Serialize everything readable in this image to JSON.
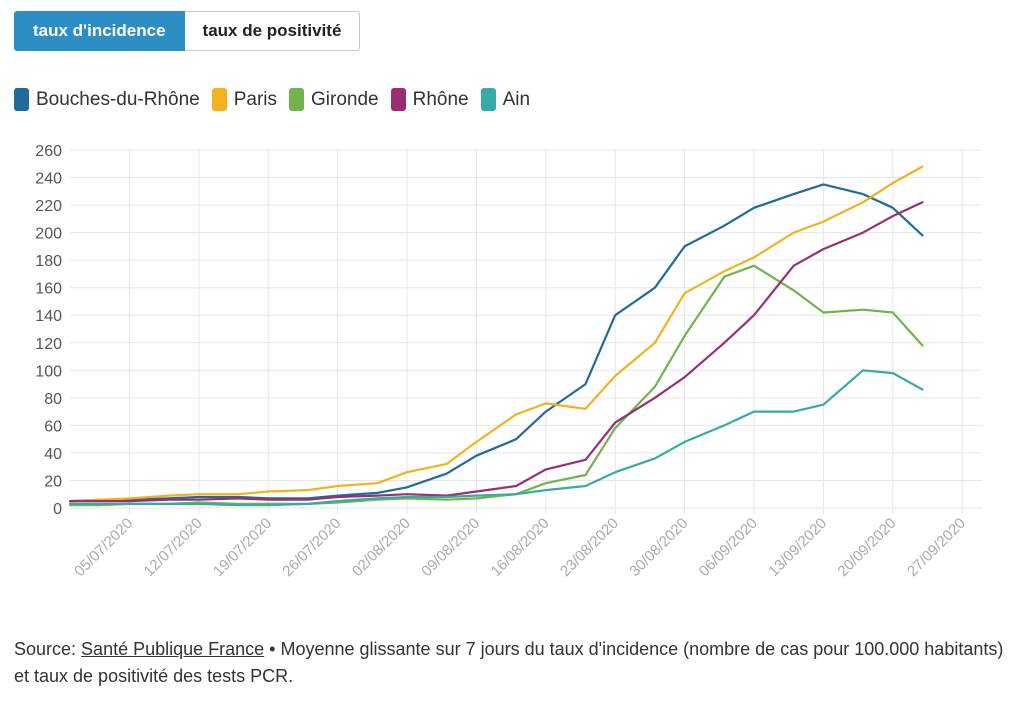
{
  "tabs": [
    {
      "label": "taux d'incidence",
      "active": true
    },
    {
      "label": "taux de positivité",
      "active": false
    }
  ],
  "source": {
    "prefix": "Source: ",
    "link_text": "Santé Publique France",
    "suffix": " • Moyenne glissante sur 7 jours du taux d'incidence (nombre de cas pour 100.000 habitants) et taux de positivité des tests PCR."
  },
  "chart_data": {
    "type": "line",
    "legend_position": "top-left",
    "grid": true,
    "ylim": [
      0,
      260
    ],
    "yticks": [
      0,
      20,
      40,
      60,
      80,
      100,
      120,
      140,
      160,
      180,
      200,
      220,
      240,
      260
    ],
    "xticks": [
      "05/07/2020",
      "12/07/2020",
      "19/07/2020",
      "26/07/2020",
      "02/08/2020",
      "09/08/2020",
      "16/08/2020",
      "23/08/2020",
      "30/08/2020",
      "06/09/2020",
      "13/09/2020",
      "20/09/2020",
      "27/09/2020"
    ],
    "x": [
      "29/06/2020",
      "02/07/2020",
      "05/07/2020",
      "09/07/2020",
      "12/07/2020",
      "16/07/2020",
      "19/07/2020",
      "23/07/2020",
      "26/07/2020",
      "30/07/2020",
      "02/08/2020",
      "06/08/2020",
      "09/08/2020",
      "13/08/2020",
      "16/08/2020",
      "20/08/2020",
      "23/08/2020",
      "27/08/2020",
      "30/08/2020",
      "03/09/2020",
      "06/09/2020",
      "10/09/2020",
      "13/09/2020",
      "17/09/2020",
      "20/09/2020",
      "23/09/2020"
    ],
    "series": [
      {
        "name": "Bouches-du-Rhône",
        "color": "#1f6b9c",
        "values": [
          5,
          6,
          6,
          7,
          8,
          8,
          7,
          7,
          9,
          11,
          15,
          25,
          38,
          50,
          70,
          90,
          140,
          160,
          190,
          205,
          218,
          228,
          235,
          228,
          218,
          198
        ]
      },
      {
        "name": "Paris",
        "color": "#f2b21e",
        "values": [
          5,
          6,
          7,
          9,
          10,
          10,
          12,
          13,
          16,
          18,
          26,
          32,
          48,
          68,
          76,
          72,
          96,
          120,
          156,
          172,
          182,
          200,
          208,
          222,
          236,
          248
        ]
      },
      {
        "name": "Gironde",
        "color": "#72b34b",
        "values": [
          2,
          2,
          3,
          3,
          4,
          3,
          3,
          3,
          4,
          6,
          7,
          6,
          7,
          10,
          18,
          24,
          58,
          88,
          125,
          168,
          176,
          158,
          142,
          144,
          142,
          118
        ]
      },
      {
        "name": "Rhône",
        "color": "#9b2d72",
        "values": [
          5,
          5,
          5,
          6,
          6,
          7,
          6,
          6,
          8,
          9,
          10,
          9,
          12,
          16,
          28,
          35,
          62,
          80,
          95,
          120,
          140,
          176,
          188,
          200,
          212,
          222
        ]
      },
      {
        "name": "Ain",
        "color": "#35aaa7",
        "values": [
          3,
          3,
          3,
          3,
          3,
          2,
          2,
          3,
          5,
          7,
          8,
          8,
          9,
          10,
          13,
          16,
          26,
          36,
          48,
          60,
          70,
          70,
          75,
          100,
          98,
          86
        ]
      }
    ]
  }
}
